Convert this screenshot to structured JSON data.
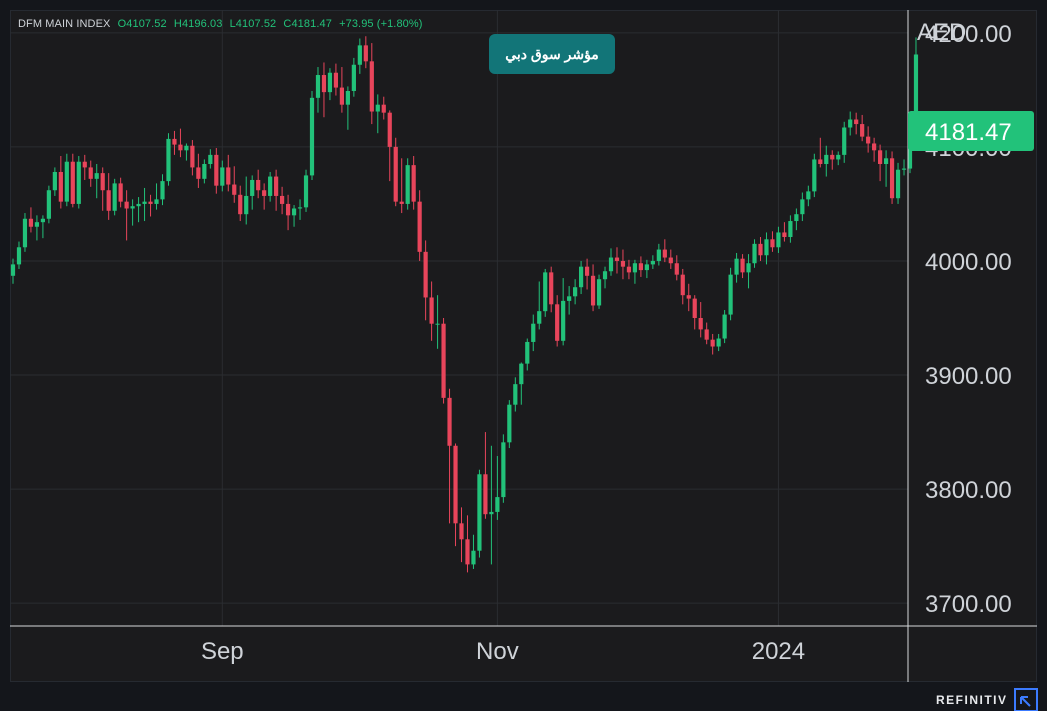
{
  "header": {
    "ohlc": {
      "symbol": "DFM MAIN INDEX",
      "open": "O4107.52",
      "high": "H4196.03",
      "low": "L4107.52",
      "close": "C4181.47",
      "change": "+73.95 (+1.80%)"
    },
    "badge_title": "مؤشر سوق دبي"
  },
  "footer": {
    "brand": "REFINITIV"
  },
  "colors": {
    "up": "#22c27a",
    "down": "#e8455b",
    "background": "#1b1b1d",
    "grid": "#2b2d31",
    "badge": "#127578",
    "last_price": "#22c27a"
  },
  "chart_data": {
    "type": "candlestick",
    "currency": "AED",
    "last_price": 4181.47,
    "last_price_label": "4181.47",
    "ylim": [
      3680,
      4220
    ],
    "y_ticks": [
      {
        "value": 4200,
        "label": "4200.00"
      },
      {
        "value": 4100,
        "label": "4100.00"
      },
      {
        "value": 4000,
        "label": "4000.00"
      },
      {
        "value": 3900,
        "label": "3900.00"
      },
      {
        "value": 3800,
        "label": "3800.00"
      },
      {
        "value": 3700,
        "label": "3700.00"
      }
    ],
    "x_ticks": [
      {
        "index": 35,
        "label": "Sep"
      },
      {
        "index": 81,
        "label": "Nov"
      },
      {
        "index": 128,
        "label": "2024"
      }
    ],
    "grid": true,
    "candles": [
      [
        3987,
        4002,
        3980,
        3997
      ],
      [
        3997,
        4017,
        3993,
        4012
      ],
      [
        4012,
        4042,
        4008,
        4037
      ],
      [
        4037,
        4047,
        4025,
        4030
      ],
      [
        4030,
        4040,
        4018,
        4034
      ],
      [
        4034,
        4040,
        4020,
        4037
      ],
      [
        4037,
        4066,
        4033,
        4062
      ],
      [
        4062,
        4082,
        4057,
        4078
      ],
      [
        4078,
        4092,
        4046,
        4052
      ],
      [
        4052,
        4094,
        4048,
        4087
      ],
      [
        4087,
        4094,
        4047,
        4050
      ],
      [
        4050,
        4092,
        4046,
        4087
      ],
      [
        4087,
        4093,
        4071,
        4082
      ],
      [
        4082,
        4088,
        4065,
        4072
      ],
      [
        4072,
        4085,
        4055,
        4077
      ],
      [
        4077,
        4082,
        4044,
        4062
      ],
      [
        4062,
        4077,
        4036,
        4044
      ],
      [
        4044,
        4072,
        4040,
        4068
      ],
      [
        4068,
        4073,
        4047,
        4052
      ],
      [
        4052,
        4062,
        4018,
        4046
      ],
      [
        4046,
        4054,
        4031,
        4048
      ],
      [
        4048,
        4056,
        4034,
        4050
      ],
      [
        4050,
        4064,
        4035,
        4052
      ],
      [
        4052,
        4058,
        4039,
        4050
      ],
      [
        4050,
        4068,
        4045,
        4054
      ],
      [
        4054,
        4076,
        4049,
        4070
      ],
      [
        4070,
        4112,
        4066,
        4107
      ],
      [
        4107,
        4114,
        4093,
        4102
      ],
      [
        4102,
        4116,
        4091,
        4097
      ],
      [
        4097,
        4103,
        4088,
        4101
      ],
      [
        4101,
        4106,
        4075,
        4082
      ],
      [
        4082,
        4094,
        4064,
        4072
      ],
      [
        4072,
        4089,
        4068,
        4085
      ],
      [
        4085,
        4098,
        4081,
        4093
      ],
      [
        4093,
        4099,
        4059,
        4066
      ],
      [
        4066,
        4088,
        4061,
        4082
      ],
      [
        4082,
        4093,
        4061,
        4067
      ],
      [
        4067,
        4083,
        4051,
        4058
      ],
      [
        4058,
        4066,
        4035,
        4041
      ],
      [
        4041,
        4074,
        4032,
        4057
      ],
      [
        4057,
        4075,
        4045,
        4071
      ],
      [
        4071,
        4080,
        4055,
        4062
      ],
      [
        4062,
        4068,
        4045,
        4057
      ],
      [
        4057,
        4078,
        4052,
        4074
      ],
      [
        4074,
        4080,
        4044,
        4057
      ],
      [
        4057,
        4065,
        4041,
        4050
      ],
      [
        4050,
        4058,
        4027,
        4040
      ],
      [
        4040,
        4049,
        4030,
        4046
      ],
      [
        4046,
        4054,
        4036,
        4047
      ],
      [
        4047,
        4080,
        4043,
        4075
      ],
      [
        4075,
        4149,
        4071,
        4143
      ],
      [
        4143,
        4170,
        4130,
        4163
      ],
      [
        4163,
        4174,
        4126,
        4148
      ],
      [
        4148,
        4169,
        4141,
        4165
      ],
      [
        4165,
        4173,
        4145,
        4152
      ],
      [
        4152,
        4170,
        4130,
        4137
      ],
      [
        4137,
        4153,
        4115,
        4149
      ],
      [
        4149,
        4178,
        4144,
        4172
      ],
      [
        4172,
        4195,
        4164,
        4189
      ],
      [
        4189,
        4197,
        4169,
        4175
      ],
      [
        4175,
        4191,
        4120,
        4131
      ],
      [
        4131,
        4146,
        4112,
        4137
      ],
      [
        4137,
        4144,
        4124,
        4130
      ],
      [
        4130,
        4132,
        4070,
        4100
      ],
      [
        4100,
        4108,
        4048,
        4052
      ],
      [
        4052,
        4090,
        4042,
        4050
      ],
      [
        4050,
        4090,
        4045,
        4084
      ],
      [
        4084,
        4092,
        4045,
        4052
      ],
      [
        4052,
        4062,
        4000,
        4008
      ],
      [
        4008,
        4018,
        3948,
        3968
      ],
      [
        3968,
        3982,
        3930,
        3945
      ],
      [
        3945,
        3970,
        3923,
        3945
      ],
      [
        3945,
        3950,
        3875,
        3880
      ],
      [
        3880,
        3888,
        3770,
        3838
      ],
      [
        3838,
        3840,
        3750,
        3770
      ],
      [
        3770,
        3784,
        3736,
        3756
      ],
      [
        3756,
        3777,
        3727,
        3734
      ],
      [
        3734,
        3760,
        3730,
        3746
      ],
      [
        3746,
        3817,
        3740,
        3813
      ],
      [
        3813,
        3850,
        3774,
        3778
      ],
      [
        3778,
        3838,
        3734,
        3780
      ],
      [
        3780,
        3829,
        3773,
        3793
      ],
      [
        3793,
        3848,
        3788,
        3841
      ],
      [
        3841,
        3878,
        3836,
        3874
      ],
      [
        3874,
        3898,
        3868,
        3892
      ],
      [
        3892,
        3911,
        3874,
        3910
      ],
      [
        3910,
        3932,
        3904,
        3929
      ],
      [
        3929,
        3953,
        3921,
        3945
      ],
      [
        3945,
        3982,
        3940,
        3956
      ],
      [
        3956,
        3993,
        3951,
        3990
      ],
      [
        3990,
        3995,
        3955,
        3962
      ],
      [
        3962,
        3970,
        3925,
        3930
      ],
      [
        3930,
        3985,
        3926,
        3965
      ],
      [
        3965,
        3978,
        3953,
        3969
      ],
      [
        3969,
        3984,
        3962,
        3977
      ],
      [
        3977,
        4000,
        3971,
        3995
      ],
      [
        3995,
        4002,
        3975,
        3987
      ],
      [
        3987,
        3997,
        3956,
        3961
      ],
      [
        3961,
        3988,
        3958,
        3984
      ],
      [
        3984,
        3995,
        3976,
        3991
      ],
      [
        3991,
        4011,
        3987,
        4003
      ],
      [
        4003,
        4012,
        3989,
        4000
      ],
      [
        4000,
        4010,
        3984,
        3995
      ],
      [
        3995,
        4001,
        3984,
        3990
      ],
      [
        3990,
        4001,
        3980,
        3998
      ],
      [
        3998,
        4004,
        3986,
        3992
      ],
      [
        3992,
        4001,
        3985,
        3997
      ],
      [
        3997,
        4005,
        3993,
        4000
      ],
      [
        4000,
        4015,
        3996,
        4010
      ],
      [
        4010,
        4019,
        3999,
        4003
      ],
      [
        4003,
        4010,
        3993,
        3998
      ],
      [
        3998,
        4005,
        3983,
        3988
      ],
      [
        3988,
        3993,
        3962,
        3970
      ],
      [
        3970,
        3980,
        3956,
        3967
      ],
      [
        3967,
        3970,
        3940,
        3950
      ],
      [
        3950,
        3964,
        3933,
        3940
      ],
      [
        3940,
        3946,
        3927,
        3931
      ],
      [
        3931,
        3936,
        3918,
        3925
      ],
      [
        3925,
        3936,
        3921,
        3932
      ],
      [
        3932,
        3957,
        3928,
        3953
      ],
      [
        3953,
        3994,
        3948,
        3988
      ],
      [
        3988,
        4007,
        3981,
        4002
      ],
      [
        4002,
        4006,
        3985,
        3990
      ],
      [
        3990,
        4006,
        3976,
        3998
      ],
      [
        3998,
        4019,
        3994,
        4015
      ],
      [
        4015,
        4021,
        4000,
        4005
      ],
      [
        4005,
        4025,
        3997,
        4019
      ],
      [
        4019,
        4026,
        4008,
        4012
      ],
      [
        4012,
        4030,
        4007,
        4025
      ],
      [
        4025,
        4034,
        4017,
        4021
      ],
      [
        4021,
        4040,
        4016,
        4035
      ],
      [
        4035,
        4046,
        4027,
        4041
      ],
      [
        4041,
        4060,
        4035,
        4054
      ],
      [
        4054,
        4066,
        4048,
        4061
      ],
      [
        4061,
        4094,
        4056,
        4089
      ],
      [
        4089,
        4108,
        4082,
        4085
      ],
      [
        4085,
        4101,
        4074,
        4093
      ],
      [
        4093,
        4097,
        4080,
        4089
      ],
      [
        4089,
        4096,
        4084,
        4093
      ],
      [
        4093,
        4122,
        4086,
        4117
      ],
      [
        4117,
        4131,
        4110,
        4124
      ],
      [
        4124,
        4130,
        4111,
        4120
      ],
      [
        4120,
        4128,
        4105,
        4109
      ],
      [
        4109,
        4118,
        4095,
        4103
      ],
      [
        4103,
        4108,
        4087,
        4097
      ],
      [
        4097,
        4102,
        4070,
        4085
      ],
      [
        4085,
        4097,
        4065,
        4090
      ],
      [
        4090,
        4096,
        4050,
        4055
      ],
      [
        4055,
        4086,
        4050,
        4080
      ],
      [
        4080,
        4089,
        4075,
        4081
      ],
      [
        4081,
        4108,
        4077,
        4107
      ],
      [
        4107,
        4196,
        4107,
        4181
      ]
    ]
  }
}
